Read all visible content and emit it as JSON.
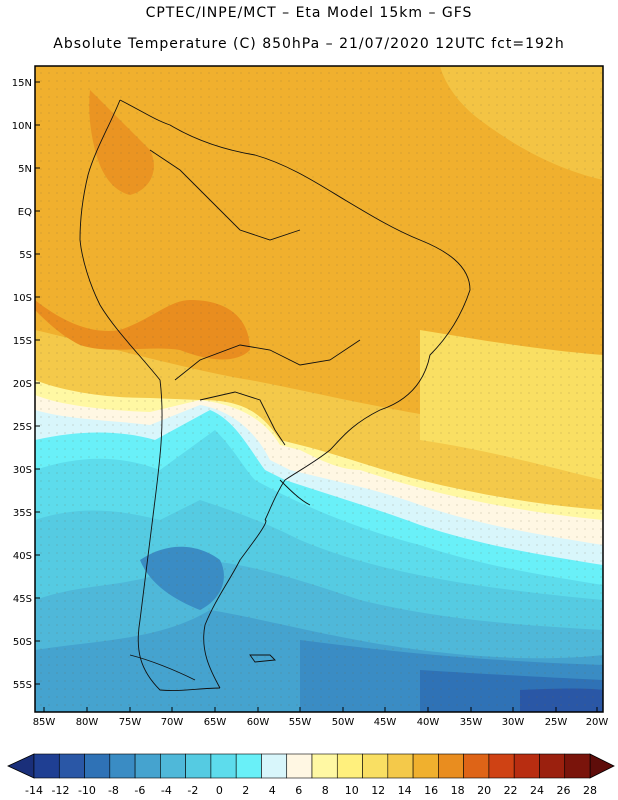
{
  "header": {
    "line1": "CPTEC/INPE/MCT –  Eta Model 15km – GFS",
    "line2": "Absolute Temperature (C) 850hPa – 21/07/2020 12UTC fct=192h"
  },
  "map": {
    "lat_labels": [
      "15N",
      "10N",
      "5N",
      "EQ",
      "5S",
      "10S",
      "15S",
      "20S",
      "25S",
      "30S",
      "35S",
      "40S",
      "45S",
      "50S",
      "55S"
    ],
    "lon_labels": [
      "85W",
      "80W",
      "75W",
      "70W",
      "65W",
      "60W",
      "55W",
      "50W",
      "45W",
      "40W",
      "35W",
      "30W",
      "25W",
      "20W"
    ],
    "region": "South America",
    "units": "C"
  },
  "colorbar": {
    "labels": [
      "-14",
      "-12",
      "-10",
      "-8",
      "-6",
      "-4",
      "-2",
      "0",
      "2",
      "4",
      "6",
      "8",
      "10",
      "12",
      "14",
      "16",
      "18",
      "20",
      "22",
      "24",
      "26",
      "28"
    ],
    "colors": [
      "#1f3f93",
      "#2a57a6",
      "#2f72b6",
      "#3a8cc4",
      "#45a3cf",
      "#4fb8d9",
      "#55cbe2",
      "#5ddcec",
      "#69f0f8",
      "#d8f6fb",
      "#fff7e3",
      "#fff8a3",
      "#fff07d",
      "#f9df63",
      "#f4c94a",
      "#f0b02e",
      "#e98d1f",
      "#de6417",
      "#cf4214",
      "#b82d11",
      "#9b200e",
      "#7a140b"
    ]
  }
}
